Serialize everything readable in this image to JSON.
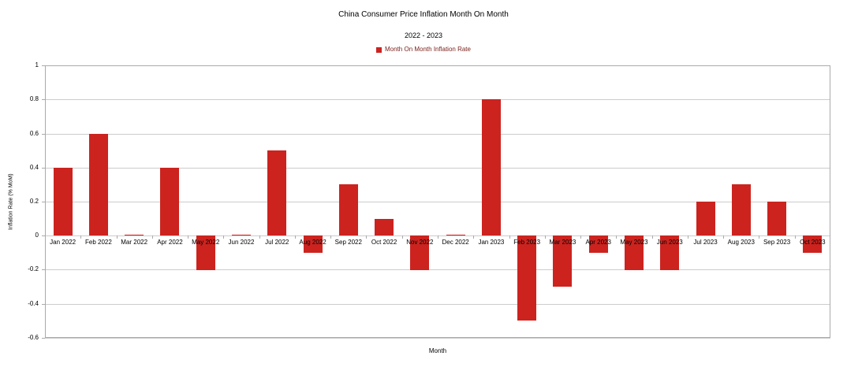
{
  "chart_data": {
    "type": "bar",
    "title": "China Consumer Price Inflation Month On Month",
    "subtitle": "2022 - 2023",
    "xlabel": "Month",
    "ylabel": "Inflation Rate (% MoM)",
    "legend_position": "top-center",
    "grid": true,
    "ylim": [
      -0.6,
      1
    ],
    "ytick_step": 0.2,
    "ytick_labels": [
      "1",
      "0.8",
      "0.6",
      "0.4",
      "0.2",
      "0",
      "-0.2",
      "-0.4",
      "-0.6"
    ],
    "categories": [
      "Jan 2022",
      "Feb 2022",
      "Mar 2022",
      "Apr 2022",
      "May 2022",
      "Jun 2022",
      "Jul 2022",
      "Aug 2022",
      "Sep 2022",
      "Oct 2022",
      "Nov 2022",
      "Dec 2022",
      "Jan 2023",
      "Feb 2023",
      "Mar 2023",
      "Apr 2023",
      "May 2023",
      "Jun 2023",
      "Jul 2023",
      "Aug 2023",
      "Sep 2023",
      "Oct 2023"
    ],
    "series": [
      {
        "name": "Month On Month Inflation Rate",
        "color": "#CC231F",
        "values": [
          0.4,
          0.6,
          0,
          0.4,
          -0.2,
          0,
          0.5,
          -0.1,
          0.3,
          0.1,
          -0.2,
          0,
          0.8,
          -0.5,
          -0.3,
          -0.1,
          -0.2,
          -0.2,
          0.2,
          0.3,
          0.2,
          -0.1
        ]
      }
    ]
  },
  "colors": {
    "bar": "#CC231F",
    "legend_text": "#7A231D",
    "gridline": "#CCCCCC",
    "plot_border": "#AAAAAA",
    "text": "#000000",
    "background": "#FFFFFF"
  }
}
